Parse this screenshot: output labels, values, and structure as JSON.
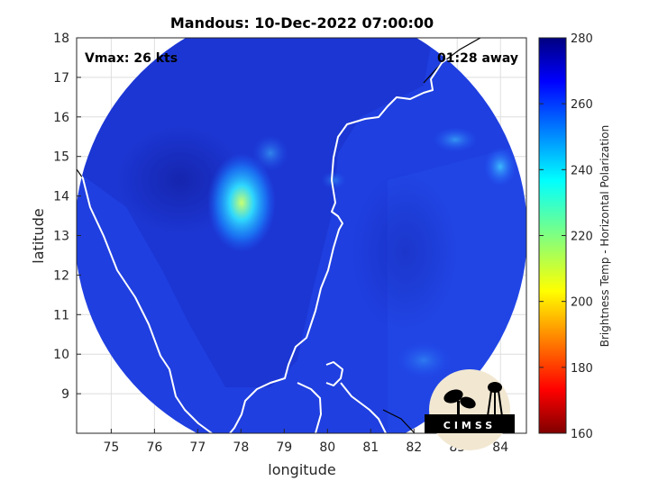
{
  "title": "Mandous: 10-Dec-2022 07:00:00",
  "vmax_label": "Vmax: 26 kts",
  "away_label": "01:28 away",
  "xlabel": "longitude",
  "ylabel": "latitude",
  "colorbar_label": "Brightness Temp - Horizontal Polarization",
  "logo_text": "CIMSS",
  "x_ticks": [
    "75",
    "76",
    "77",
    "78",
    "79",
    "80",
    "81",
    "82",
    "83",
    "84"
  ],
  "y_ticks": [
    "9",
    "10",
    "11",
    "12",
    "13",
    "14",
    "15",
    "16",
    "17",
    "18"
  ],
  "colorbar_ticks": [
    "280",
    "260",
    "240",
    "220",
    "200",
    "180",
    "160"
  ],
  "map_data": {
    "x_range": [
      74.2,
      84.6
    ],
    "y_range": [
      8.0,
      18.0
    ],
    "colorbar_range": [
      160,
      280
    ],
    "colormap": "jet",
    "grid": true
  },
  "colors": {
    "swath_base": "#1f3fe0",
    "land_dark": "#1a2fc8",
    "coastline": "#ffffff",
    "outside_coast": "#000000",
    "background": "#ffffff"
  }
}
